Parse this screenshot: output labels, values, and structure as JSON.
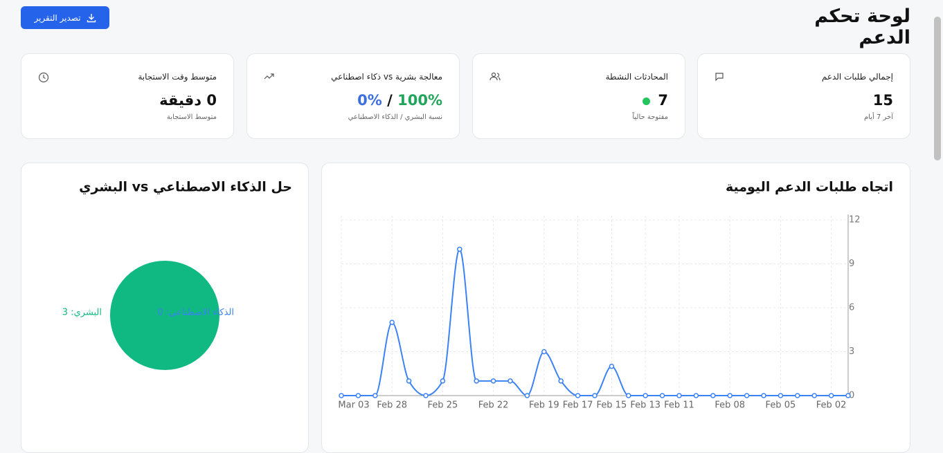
{
  "header": {
    "title": "لوحة تحكم الدعم",
    "export_button": "تصدير التقرير"
  },
  "cards": {
    "total_requests": {
      "title": "إجمالي طلبات الدعم",
      "value": "15",
      "subtitle": "آخر 7 أيام"
    },
    "active_conversations": {
      "title": "المحادثات النشطة",
      "value": "7",
      "subtitle": "مفتوحة حالياً"
    },
    "human_vs_ai": {
      "title": "معالجة بشرية vs ذكاء اصطناعي",
      "human": "100%",
      "separator": "/",
      "ai": "0%",
      "subtitle": "نسبة البشري / الذكاء الاصطناعي"
    },
    "avg_response": {
      "title": "متوسط وقت الاستجابة",
      "value": "0 دقيقة",
      "subtitle": "متوسط الاستجابة"
    }
  },
  "chart_data": [
    {
      "type": "line",
      "title": "اتجاه طلبات الدعم اليومية",
      "categories": [
        "Mar 03",
        null,
        null,
        "Feb 28",
        null,
        null,
        "Feb 25",
        null,
        null,
        "Feb 22",
        null,
        null,
        "Feb 19",
        null,
        "Feb 17",
        null,
        "Feb 15",
        null,
        "Feb 13",
        null,
        "Feb 11",
        null,
        null,
        "Feb 08",
        null,
        null,
        "Feb 05",
        null,
        null,
        "Feb 02",
        null
      ],
      "series": [
        {
          "color": "#3b82f6",
          "values": [
            0,
            0,
            0,
            5,
            1,
            0,
            1,
            10,
            1,
            1,
            1,
            0,
            3,
            1,
            0,
            0,
            2,
            0,
            0,
            0,
            0,
            0,
            0,
            0,
            0,
            0,
            0,
            0,
            0,
            0,
            0
          ]
        }
      ],
      "ylim": [
        0,
        12
      ],
      "yticks": [
        0,
        3,
        6,
        9,
        12
      ],
      "grid": true
    },
    {
      "type": "pie",
      "title": "حل الذكاء الاصطناعي vs البشري",
      "series": [
        {
          "name": "الذكاء الاصطناعي",
          "color": "#3b82f6"
        },
        {
          "name": "البشري",
          "color": "#10b981"
        }
      ],
      "values": [
        0,
        3
      ],
      "value_labels": [
        "الذكاء الاصطناعي: 0",
        "البشري: 3"
      ]
    }
  ]
}
